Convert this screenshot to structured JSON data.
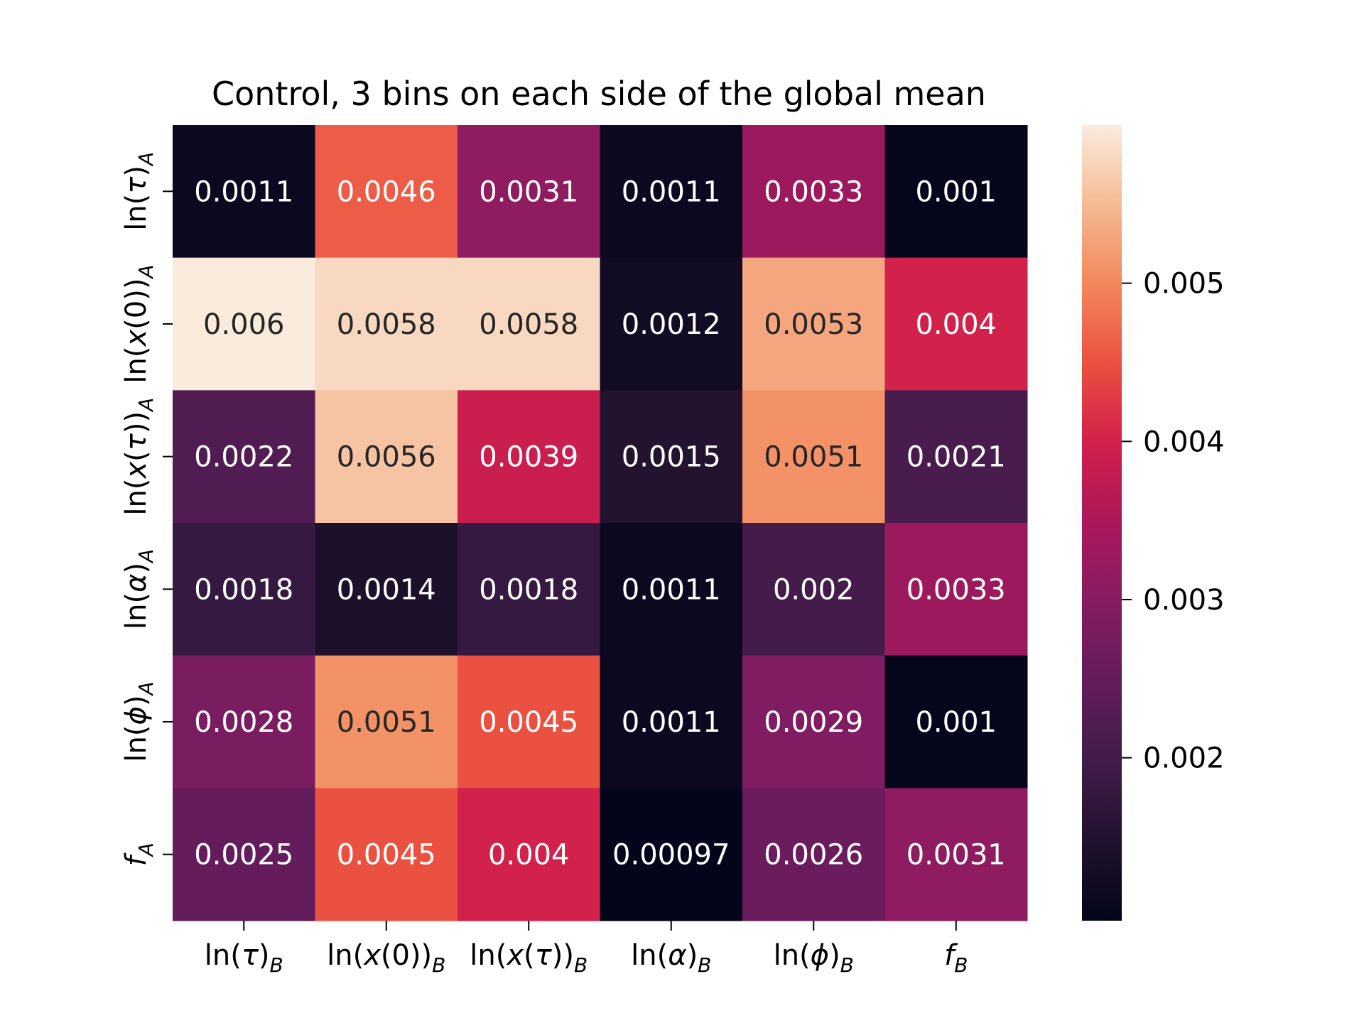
{
  "chart_data": {
    "type": "heatmap",
    "title": "Control, 3 bins on each side of the global mean",
    "x_labels": [
      {
        "pre": "ln(",
        "var": "τ",
        "post": ")",
        "sub": "B"
      },
      {
        "pre": "ln(",
        "var": "x",
        "post": "(0))",
        "sub": "B"
      },
      {
        "pre": "ln(",
        "var": "x",
        "post": "(τ))",
        "sub": "B",
        "mid_italic": "τ"
      },
      {
        "pre": "ln(",
        "var": "α",
        "post": ")",
        "sub": "B"
      },
      {
        "pre": "ln(",
        "var": "ϕ",
        "post": ")",
        "sub": "B"
      },
      {
        "pre": "",
        "var": "f",
        "post": "",
        "sub": "B"
      }
    ],
    "y_labels": [
      {
        "pre": "ln(",
        "var": "τ",
        "post": ")",
        "sub": "A"
      },
      {
        "pre": "ln(",
        "var": "x",
        "post": "(0))",
        "sub": "A"
      },
      {
        "pre": "ln(",
        "var": "x",
        "post": "(τ))",
        "sub": "A"
      },
      {
        "pre": "ln(",
        "var": "α",
        "post": ")",
        "sub": "A"
      },
      {
        "pre": "ln(",
        "var": "ϕ",
        "post": ")",
        "sub": "A"
      },
      {
        "pre": "",
        "var": "f",
        "post": "",
        "sub": "A"
      }
    ],
    "values": [
      [
        0.0011,
        0.0046,
        0.0031,
        0.0011,
        0.0033,
        0.001
      ],
      [
        0.006,
        0.0058,
        0.0058,
        0.0012,
        0.0053,
        0.004
      ],
      [
        0.0022,
        0.0056,
        0.0039,
        0.0015,
        0.0051,
        0.0021
      ],
      [
        0.0018,
        0.0014,
        0.0018,
        0.0011,
        0.002,
        0.0033
      ],
      [
        0.0028,
        0.0051,
        0.0045,
        0.0011,
        0.0029,
        0.001
      ],
      [
        0.0025,
        0.0045,
        0.004,
        0.00097,
        0.0026,
        0.0031
      ]
    ],
    "cell_labels": [
      [
        "0.0011",
        "0.0046",
        "0.0031",
        "0.0011",
        "0.0033",
        "0.001"
      ],
      [
        "0.006",
        "0.0058",
        "0.0058",
        "0.0012",
        "0.0053",
        "0.004"
      ],
      [
        "0.0022",
        "0.0056",
        "0.0039",
        "0.0015",
        "0.0051",
        "0.0021"
      ],
      [
        "0.0018",
        "0.0014",
        "0.0018",
        "0.0011",
        "0.002",
        "0.0033"
      ],
      [
        "0.0028",
        "0.0051",
        "0.0045",
        "0.0011",
        "0.0029",
        "0.001"
      ],
      [
        "0.0025",
        "0.0045",
        "0.004",
        "0.00097",
        "0.0026",
        "0.0031"
      ]
    ],
    "colorbar": {
      "colormap": "rocket",
      "vmin": 0.00097,
      "vmax": 0.006,
      "ticks": [
        0.002,
        0.003,
        0.004,
        0.005
      ],
      "tick_labels": [
        "0.002",
        "0.003",
        "0.004",
        "0.005"
      ]
    }
  }
}
